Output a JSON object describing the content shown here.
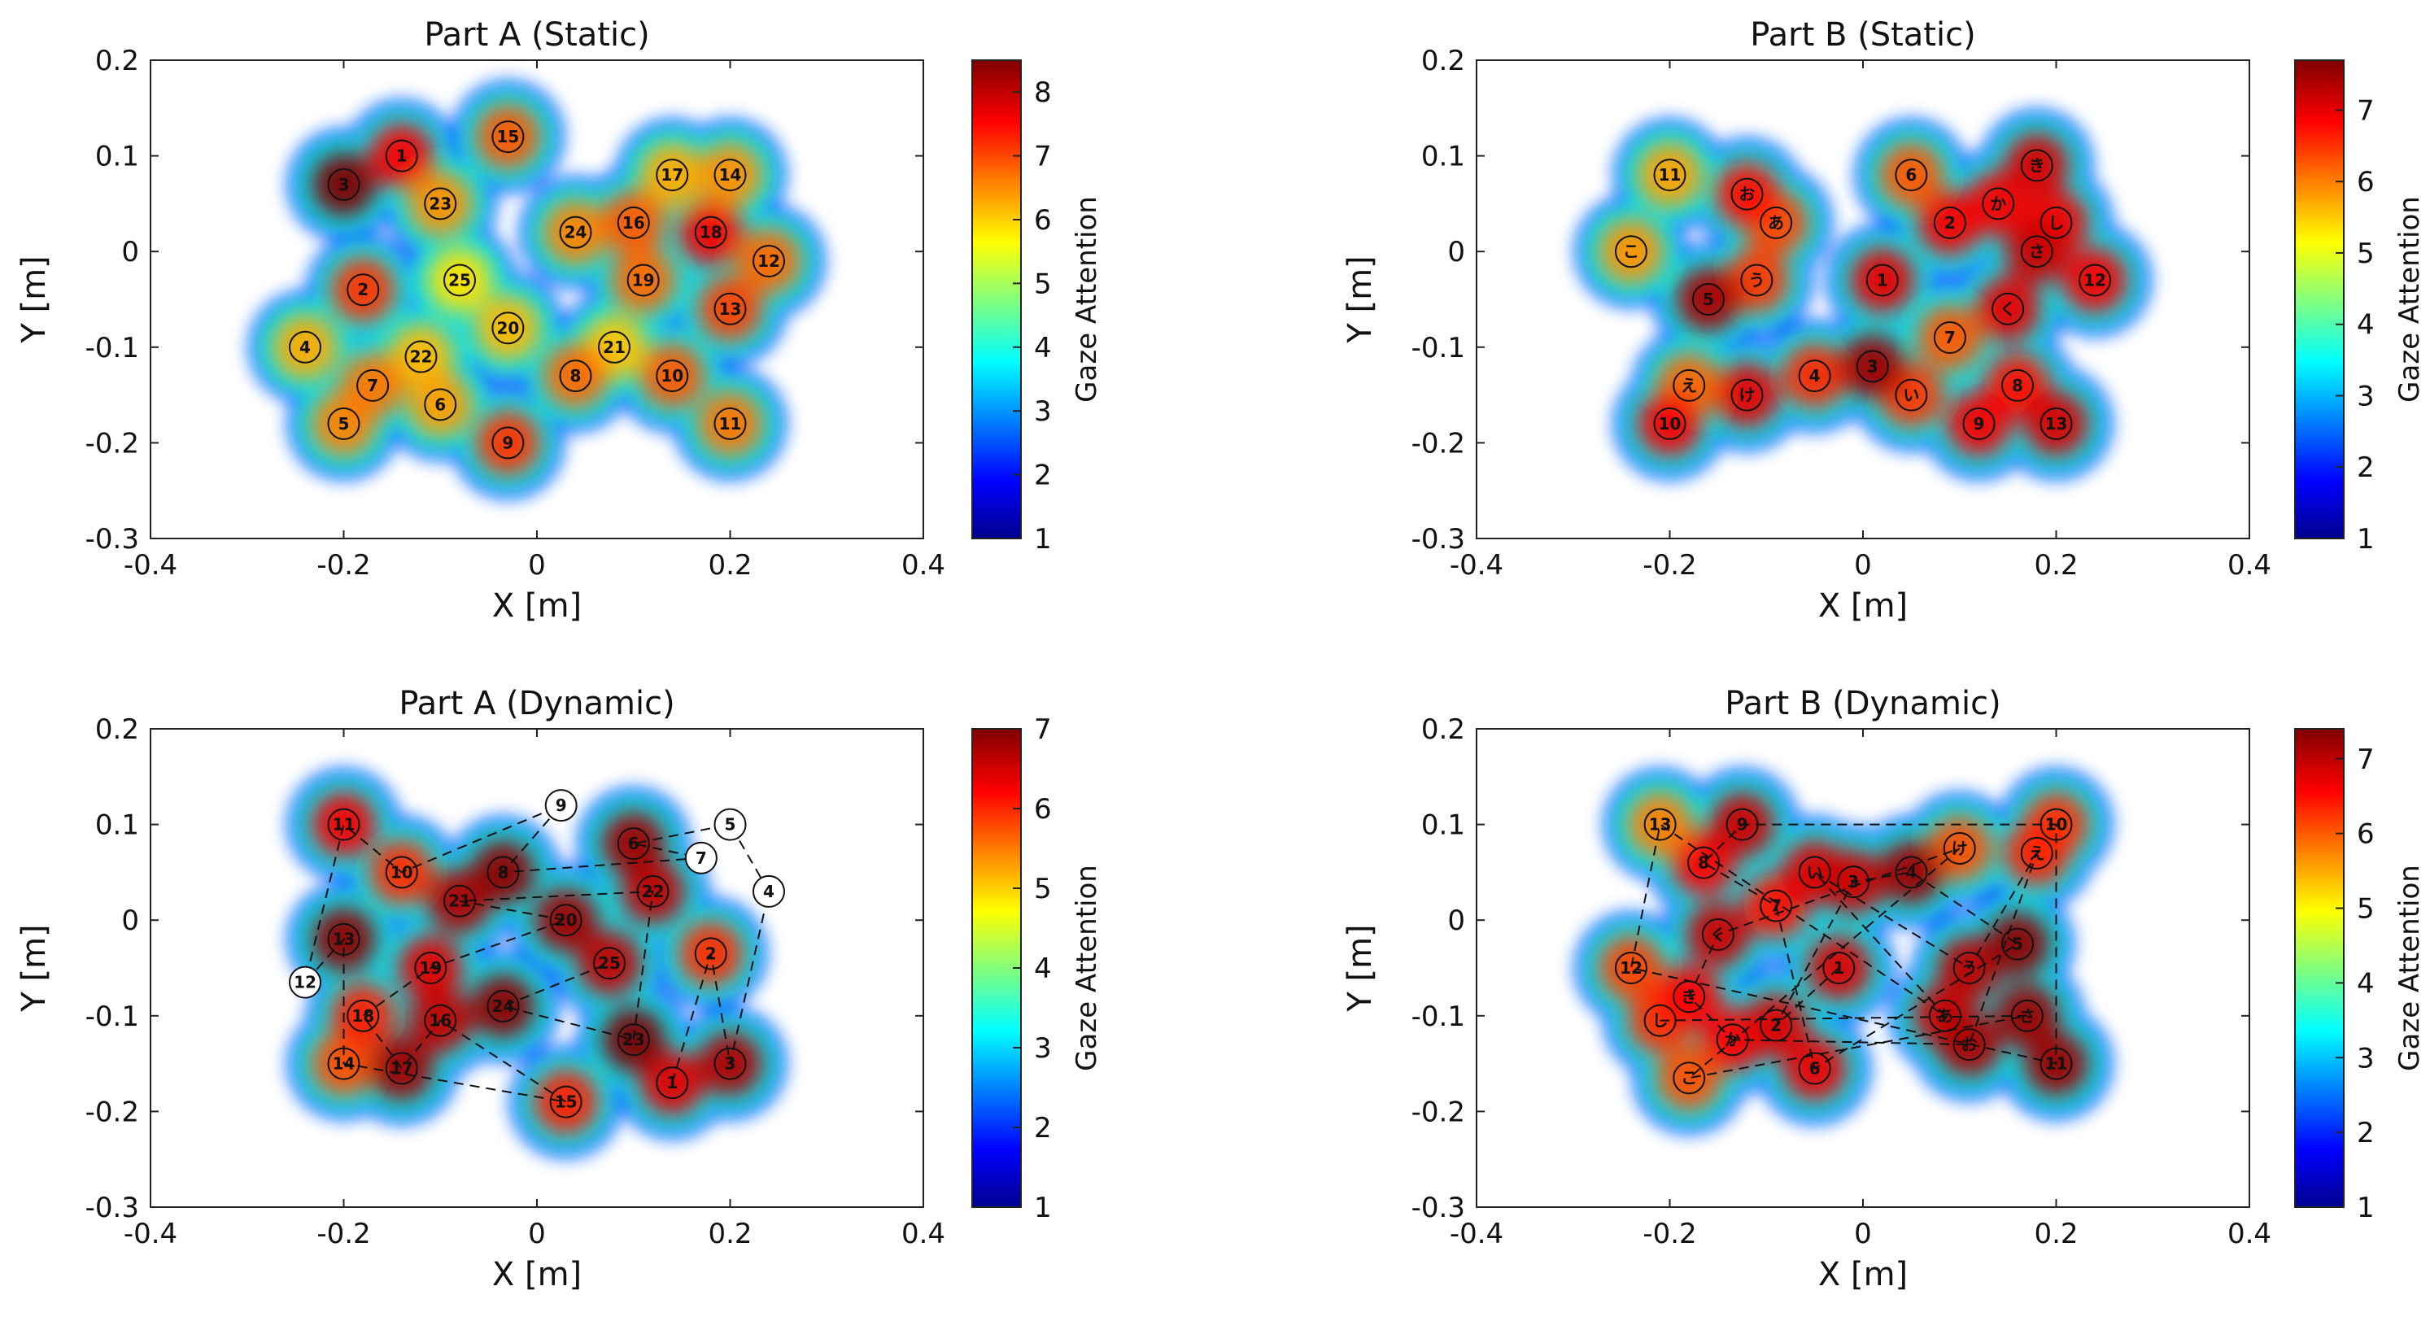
{
  "figure": {
    "colors": {
      "frame": "#222222",
      "path": "#111111",
      "marker_stroke": "#111111"
    }
  },
  "chart_data": [
    {
      "type": "heatmap",
      "title": "Part A (Static)",
      "xlabel": "X [m]",
      "ylabel": "Y [m]",
      "xlim": [
        -0.4,
        0.4
      ],
      "ylim": [
        -0.3,
        0.2
      ],
      "xticks": [
        "-0.4",
        "-0.2",
        "0",
        "0.2",
        "0.4"
      ],
      "yticks": [
        "0.2",
        "0.1",
        "0",
        "-0.1",
        "-0.2",
        "-0.3"
      ],
      "colorbar": {
        "label": "Gaze Attention",
        "range": [
          1,
          8.5
        ],
        "ticks": [
          "8",
          "7",
          "6",
          "5",
          "4",
          "3",
          "2",
          "1"
        ]
      },
      "path": false,
      "markers": [
        {
          "label": "1",
          "x": -0.14,
          "y": 0.1,
          "v": 7.6
        },
        {
          "label": "2",
          "x": -0.18,
          "y": -0.04,
          "v": 7.2
        },
        {
          "label": "3",
          "x": -0.2,
          "y": 0.07,
          "v": 8.5
        },
        {
          "label": "4",
          "x": -0.24,
          "y": -0.1,
          "v": 6.3
        },
        {
          "label": "5",
          "x": -0.2,
          "y": -0.18,
          "v": 6.6
        },
        {
          "label": "6",
          "x": -0.1,
          "y": -0.16,
          "v": 6.4
        },
        {
          "label": "7",
          "x": -0.17,
          "y": -0.14,
          "v": 6.7
        },
        {
          "label": "8",
          "x": 0.04,
          "y": -0.13,
          "v": 6.8
        },
        {
          "label": "9",
          "x": -0.03,
          "y": -0.2,
          "v": 7.2
        },
        {
          "label": "10",
          "x": 0.14,
          "y": -0.13,
          "v": 6.9
        },
        {
          "label": "11",
          "x": 0.2,
          "y": -0.18,
          "v": 6.7
        },
        {
          "label": "12",
          "x": 0.24,
          "y": -0.01,
          "v": 6.8
        },
        {
          "label": "13",
          "x": 0.2,
          "y": -0.06,
          "v": 7.1
        },
        {
          "label": "14",
          "x": 0.2,
          "y": 0.08,
          "v": 6.5
        },
        {
          "label": "15",
          "x": -0.03,
          "y": 0.12,
          "v": 6.9
        },
        {
          "label": "16",
          "x": 0.1,
          "y": 0.03,
          "v": 6.9
        },
        {
          "label": "17",
          "x": 0.14,
          "y": 0.08,
          "v": 6.3
        },
        {
          "label": "18",
          "x": 0.18,
          "y": 0.02,
          "v": 7.6
        },
        {
          "label": "19",
          "x": 0.11,
          "y": -0.03,
          "v": 6.8
        },
        {
          "label": "20",
          "x": -0.03,
          "y": -0.08,
          "v": 6.2
        },
        {
          "label": "21",
          "x": 0.08,
          "y": -0.1,
          "v": 6.1
        },
        {
          "label": "22",
          "x": -0.12,
          "y": -0.11,
          "v": 6.2
        },
        {
          "label": "23",
          "x": -0.1,
          "y": 0.05,
          "v": 6.5
        },
        {
          "label": "24",
          "x": 0.04,
          "y": 0.02,
          "v": 6.6
        },
        {
          "label": "25",
          "x": -0.08,
          "y": -0.03,
          "v": 5.9
        }
      ]
    },
    {
      "type": "heatmap",
      "title": "Part B (Static)",
      "xlabel": "X [m]",
      "ylabel": "Y [m]",
      "xlim": [
        -0.4,
        0.4
      ],
      "ylim": [
        -0.3,
        0.2
      ],
      "xticks": [
        "-0.4",
        "-0.2",
        "0",
        "0.2",
        "0.4"
      ],
      "yticks": [
        "0.2",
        "0.1",
        "0",
        "-0.1",
        "-0.2",
        "-0.3"
      ],
      "colorbar": {
        "label": "Gaze Attention",
        "range": [
          1,
          7.7
        ],
        "ticks": [
          "7",
          "6",
          "5",
          "4",
          "3",
          "2",
          "1"
        ]
      },
      "path": false,
      "markers": [
        {
          "label": "1",
          "x": 0.02,
          "y": -0.03,
          "v": 7.0
        },
        {
          "label": "2",
          "x": 0.09,
          "y": 0.03,
          "v": 6.9
        },
        {
          "label": "3",
          "x": 0.01,
          "y": -0.12,
          "v": 7.5
        },
        {
          "label": "4",
          "x": -0.05,
          "y": -0.13,
          "v": 6.6
        },
        {
          "label": "5",
          "x": -0.16,
          "y": -0.05,
          "v": 7.4
        },
        {
          "label": "6",
          "x": 0.05,
          "y": 0.08,
          "v": 6.3
        },
        {
          "label": "7",
          "x": 0.09,
          "y": -0.09,
          "v": 6.3
        },
        {
          "label": "8",
          "x": 0.16,
          "y": -0.14,
          "v": 6.8
        },
        {
          "label": "9",
          "x": 0.12,
          "y": -0.18,
          "v": 6.9
        },
        {
          "label": "10",
          "x": -0.2,
          "y": -0.18,
          "v": 6.9
        },
        {
          "label": "11",
          "x": -0.2,
          "y": 0.08,
          "v": 5.8
        },
        {
          "label": "12",
          "x": 0.24,
          "y": -0.03,
          "v": 6.9
        },
        {
          "label": "13",
          "x": 0.2,
          "y": -0.18,
          "v": 7.1
        },
        {
          "label": "あ",
          "x": -0.09,
          "y": 0.03,
          "v": 6.4
        },
        {
          "label": "い",
          "x": 0.05,
          "y": -0.15,
          "v": 6.5
        },
        {
          "label": "う",
          "x": -0.11,
          "y": -0.03,
          "v": 6.5
        },
        {
          "label": "え",
          "x": -0.18,
          "y": -0.14,
          "v": 6.2
        },
        {
          "label": "お",
          "x": -0.12,
          "y": 0.06,
          "v": 6.8
        },
        {
          "label": "か",
          "x": 0.14,
          "y": 0.05,
          "v": 6.9
        },
        {
          "label": "き",
          "x": 0.18,
          "y": 0.09,
          "v": 7.1
        },
        {
          "label": "く",
          "x": 0.15,
          "y": -0.06,
          "v": 7.0
        },
        {
          "label": "け",
          "x": -0.12,
          "y": -0.15,
          "v": 7.0
        },
        {
          "label": "こ",
          "x": -0.24,
          "y": 0.0,
          "v": 5.9
        },
        {
          "label": "さ",
          "x": 0.18,
          "y": 0.0,
          "v": 7.2
        },
        {
          "label": "し",
          "x": 0.2,
          "y": 0.03,
          "v": 6.9
        }
      ]
    },
    {
      "type": "heatmap",
      "title": "Part A (Dynamic)",
      "xlabel": "X [m]",
      "ylabel": "Y [m]",
      "xlim": [
        -0.4,
        0.4
      ],
      "ylim": [
        -0.3,
        0.2
      ],
      "xticks": [
        "-0.4",
        "-0.2",
        "0",
        "0.2",
        "0.4"
      ],
      "yticks": [
        "0.2",
        "0.1",
        "0",
        "-0.1",
        "-0.2",
        "-0.3"
      ],
      "colorbar": {
        "label": "Gaze Attention",
        "range": [
          1,
          7
        ],
        "ticks": [
          "7",
          "6",
          "5",
          "4",
          "3",
          "2",
          "1"
        ]
      },
      "path": true,
      "markers": [
        {
          "label": "1",
          "x": 0.14,
          "y": -0.17,
          "v": 6.4
        },
        {
          "label": "2",
          "x": 0.18,
          "y": -0.035,
          "v": 6.0
        },
        {
          "label": "3",
          "x": 0.2,
          "y": -0.15,
          "v": 6.7
        },
        {
          "label": "4",
          "x": 0.24,
          "y": 0.03,
          "v": null
        },
        {
          "label": "5",
          "x": 0.2,
          "y": 0.1,
          "v": null
        },
        {
          "label": "6",
          "x": 0.1,
          "y": 0.08,
          "v": 6.8
        },
        {
          "label": "7",
          "x": 0.17,
          "y": 0.065,
          "v": null
        },
        {
          "label": "8",
          "x": -0.035,
          "y": 0.05,
          "v": 6.9
        },
        {
          "label": "9",
          "x": 0.025,
          "y": 0.12,
          "v": null
        },
        {
          "label": "10",
          "x": -0.14,
          "y": 0.05,
          "v": 6.0
        },
        {
          "label": "11",
          "x": -0.2,
          "y": 0.1,
          "v": 6.3
        },
        {
          "label": "12",
          "x": -0.24,
          "y": -0.065,
          "v": null
        },
        {
          "label": "13",
          "x": -0.2,
          "y": -0.02,
          "v": 6.9
        },
        {
          "label": "14",
          "x": -0.2,
          "y": -0.15,
          "v": 5.8
        },
        {
          "label": "15",
          "x": 0.03,
          "y": -0.19,
          "v": 6.1
        },
        {
          "label": "16",
          "x": -0.1,
          "y": -0.105,
          "v": 6.6
        },
        {
          "label": "17",
          "x": -0.14,
          "y": -0.155,
          "v": 6.8
        },
        {
          "label": "18",
          "x": -0.18,
          "y": -0.1,
          "v": 6.1
        },
        {
          "label": "19",
          "x": -0.11,
          "y": -0.05,
          "v": 6.4
        },
        {
          "label": "20",
          "x": 0.03,
          "y": 0.0,
          "v": 6.8
        },
        {
          "label": "21",
          "x": -0.08,
          "y": 0.02,
          "v": 6.7
        },
        {
          "label": "22",
          "x": 0.12,
          "y": 0.03,
          "v": 6.6
        },
        {
          "label": "23",
          "x": 0.1,
          "y": -0.125,
          "v": 7.0
        },
        {
          "label": "24",
          "x": -0.035,
          "y": -0.09,
          "v": 6.9
        },
        {
          "label": "25",
          "x": 0.075,
          "y": -0.045,
          "v": 6.6
        }
      ]
    },
    {
      "type": "heatmap",
      "title": "Part B (Dynamic)",
      "xlabel": "X [m]",
      "ylabel": "Y [m]",
      "xlim": [
        -0.4,
        0.4
      ],
      "ylim": [
        -0.3,
        0.2
      ],
      "xticks": [
        "-0.4",
        "-0.2",
        "0",
        "0.2",
        "0.4"
      ],
      "yticks": [
        "0.2",
        "0.1",
        "0",
        "-0.1",
        "-0.2",
        "-0.3"
      ],
      "colorbar": {
        "label": "Gaze Attention",
        "range": [
          1,
          7.4
        ],
        "ticks": [
          "7",
          "6",
          "5",
          "4",
          "3",
          "2",
          "1"
        ]
      },
      "path": true,
      "markers": [
        {
          "label": "1",
          "x": -0.025,
          "y": -0.05,
          "v": 6.8
        },
        {
          "label": "2",
          "x": -0.09,
          "y": -0.11,
          "v": 6.8
        },
        {
          "label": "3",
          "x": -0.01,
          "y": 0.04,
          "v": 6.9
        },
        {
          "label": "4",
          "x": 0.05,
          "y": 0.05,
          "v": 7.2
        },
        {
          "label": "5",
          "x": 0.16,
          "y": -0.025,
          "v": 7.3
        },
        {
          "label": "6",
          "x": -0.05,
          "y": -0.155,
          "v": 6.7
        },
        {
          "label": "7",
          "x": -0.09,
          "y": 0.015,
          "v": 6.5
        },
        {
          "label": "8",
          "x": -0.165,
          "y": 0.06,
          "v": 6.6
        },
        {
          "label": "9",
          "x": -0.125,
          "y": 0.1,
          "v": 6.9
        },
        {
          "label": "10",
          "x": 0.2,
          "y": 0.1,
          "v": 6.3
        },
        {
          "label": "11",
          "x": 0.2,
          "y": -0.15,
          "v": 7.2
        },
        {
          "label": "12",
          "x": -0.24,
          "y": -0.05,
          "v": 6.2
        },
        {
          "label": "13",
          "x": -0.21,
          "y": 0.1,
          "v": 5.8
        },
        {
          "label": "あ",
          "x": 0.085,
          "y": -0.1,
          "v": 6.9
        },
        {
          "label": "い",
          "x": -0.05,
          "y": 0.05,
          "v": 6.8
        },
        {
          "label": "う",
          "x": 0.11,
          "y": -0.05,
          "v": 7.0
        },
        {
          "label": "え",
          "x": 0.18,
          "y": 0.07,
          "v": 6.4
        },
        {
          "label": "お",
          "x": 0.11,
          "y": -0.13,
          "v": 7.1
        },
        {
          "label": "か",
          "x": -0.135,
          "y": -0.125,
          "v": 6.6
        },
        {
          "label": "き",
          "x": -0.18,
          "y": -0.08,
          "v": 6.6
        },
        {
          "label": "く",
          "x": -0.15,
          "y": -0.015,
          "v": 6.9
        },
        {
          "label": "け",
          "x": 0.1,
          "y": 0.075,
          "v": 6.1
        },
        {
          "label": "こ",
          "x": -0.18,
          "y": -0.165,
          "v": 6.1
        },
        {
          "label": "さ",
          "x": 0.17,
          "y": -0.1,
          "v": 7.2
        },
        {
          "label": "し",
          "x": -0.21,
          "y": -0.105,
          "v": 6.3
        }
      ]
    }
  ]
}
